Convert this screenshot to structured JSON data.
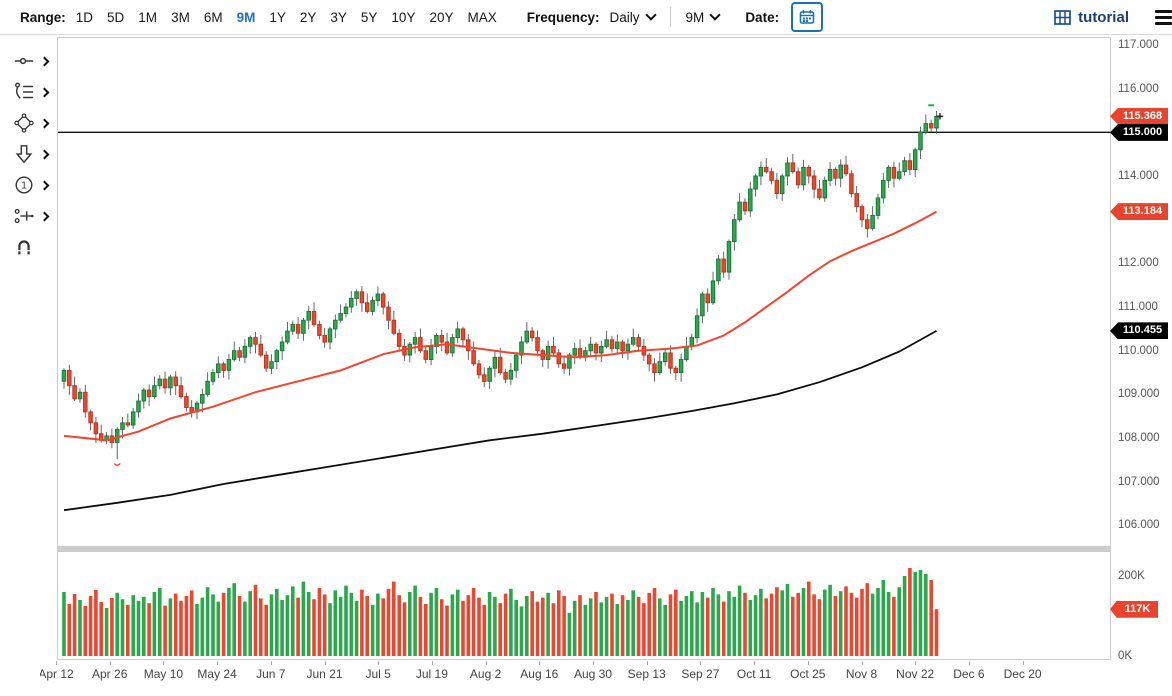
{
  "toolbar": {
    "range_label": "Range:",
    "range_options": [
      "1D",
      "5D",
      "1M",
      "3M",
      "6M",
      "9M",
      "1Y",
      "2Y",
      "3Y",
      "5Y",
      "10Y",
      "20Y",
      "MAX"
    ],
    "active_range": "9M",
    "frequency_label": "Frequency:",
    "frequency_value": "Daily",
    "interval_value": "9M",
    "date_label": "Date:"
  },
  "brand": {
    "name": "tutorial"
  },
  "side_toolbar": {
    "tools": [
      "line-tool",
      "drawing-list-tool",
      "shapes-tool",
      "arrow-tool",
      "number-annotation-tool",
      "compare-tool",
      "magnet-tool"
    ]
  },
  "colors": {
    "up": "#2aa84c",
    "up_border": "#177237",
    "down": "#ea4630",
    "down_border": "#b8301c",
    "ma_fast": "#f4442e",
    "ma_slow": "#0d0d0d",
    "badge_red": "#e8432c",
    "badge_black": "#000000",
    "accent_blue": "#1d6fd0",
    "brand_navy": "#1c3f77",
    "wick": "#555555"
  },
  "chart_data": {
    "type": "candlestick",
    "panes": [
      "price",
      "volume"
    ],
    "frequency": "Daily",
    "x_tick_labels": [
      "Apr 12",
      "Apr 26",
      "May 10",
      "May 24",
      "Jun 7",
      "Jun 21",
      "Jul 5",
      "Jul 19",
      "Aug 2",
      "Aug 16",
      "Aug 30",
      "Sep 13",
      "Sep 27",
      "Oct 11",
      "Oct 25",
      "Nov 8",
      "Nov 22",
      "Dec 6",
      "Dec 20"
    ],
    "days_per_tick": 10,
    "price_ticks": [
      117,
      116,
      114,
      112,
      111,
      110,
      109,
      108,
      107,
      106
    ],
    "volume_ticks_k": [
      200,
      0
    ],
    "price_axis_range": [
      105.5,
      117.16
    ],
    "volume_axis_range_k": [
      0,
      260
    ],
    "price_line": 115.0,
    "last_price": 115.368,
    "ma_fast_last": 113.184,
    "ma_slow_last": 110.455,
    "last_volume_k": 117,
    "price_badges": [
      {
        "text": "115.368",
        "value": 115.368,
        "bg": "#e8432c"
      },
      {
        "text": "115.000",
        "value": 115.0,
        "bg": "#000000"
      },
      {
        "text": "113.184",
        "value": 113.184,
        "bg": "#e8432c"
      },
      {
        "text": "110.455",
        "value": 110.455,
        "bg": "#000000"
      }
    ],
    "volume_badge": {
      "text": "117K",
      "value_k": 117,
      "bg": "#e8432c"
    },
    "markers": {
      "high_dash": 115.62,
      "last_trade_cross": 115.368,
      "low_check": 107.42
    },
    "closes": [
      109.55,
      109.2,
      108.9,
      109.05,
      108.6,
      108.35,
      108.1,
      107.95,
      108.05,
      107.9,
      108.2,
      108.35,
      108.3,
      108.6,
      108.85,
      109.1,
      108.95,
      109.2,
      109.35,
      109.15,
      109.4,
      109.2,
      108.95,
      108.7,
      108.6,
      108.8,
      109.0,
      109.3,
      109.5,
      109.7,
      109.55,
      109.8,
      110.0,
      109.85,
      110.1,
      110.3,
      110.15,
      109.9,
      109.6,
      109.75,
      110.0,
      110.2,
      110.45,
      110.6,
      110.4,
      110.7,
      110.9,
      110.6,
      110.35,
      110.2,
      110.5,
      110.7,
      110.85,
      111.0,
      111.2,
      111.35,
      111.1,
      110.9,
      111.15,
      111.3,
      111.0,
      110.7,
      110.4,
      110.1,
      109.9,
      110.15,
      110.3,
      110.0,
      109.8,
      110.1,
      110.35,
      110.2,
      109.95,
      110.3,
      110.5,
      110.25,
      110.0,
      109.7,
      109.45,
      109.3,
      109.6,
      109.85,
      109.5,
      109.35,
      109.55,
      109.9,
      110.2,
      110.45,
      110.3,
      110.0,
      109.8,
      110.1,
      109.95,
      109.7,
      109.6,
      109.9,
      110.05,
      109.85,
      110.0,
      110.15,
      109.95,
      110.1,
      110.25,
      110.05,
      110.2,
      110.0,
      110.15,
      110.3,
      110.1,
      109.9,
      109.7,
      109.5,
      109.75,
      109.95,
      109.6,
      109.5,
      109.8,
      110.1,
      110.3,
      110.8,
      111.3,
      111.1,
      111.6,
      112.1,
      111.8,
      112.5,
      113.0,
      113.4,
      113.2,
      113.7,
      114.0,
      114.2,
      114.1,
      113.9,
      113.6,
      114.0,
      114.3,
      114.1,
      113.8,
      114.2,
      114.0,
      113.7,
      113.5,
      113.9,
      114.15,
      113.95,
      114.25,
      114.05,
      113.6,
      113.3,
      113.0,
      112.8,
      113.1,
      113.5,
      113.9,
      114.2,
      113.95,
      114.1,
      114.35,
      114.15,
      114.6,
      115.0,
      115.2,
      115.1,
      115.368
    ],
    "first_open": 109.3,
    "volumes_k": [
      160,
      130,
      155,
      140,
      125,
      150,
      165,
      135,
      120,
      145,
      158,
      142,
      128,
      152,
      138,
      148,
      132,
      160,
      170,
      126,
      144,
      156,
      138,
      150,
      164,
      130,
      146,
      172,
      154,
      136,
      158,
      170,
      182,
      150,
      136,
      162,
      178,
      144,
      128,
      154,
      168,
      140,
      152,
      174,
      146,
      186,
      160,
      142,
      170,
      154,
      132,
      164,
      148,
      176,
      158,
      138,
      166,
      150,
      128,
      156,
      144,
      168,
      186,
      152,
      134,
      160,
      176,
      148,
      130,
      158,
      170,
      142,
      126,
      154,
      166,
      138,
      152,
      170,
      146,
      128,
      160,
      148,
      132,
      156,
      168,
      140,
      124,
      150,
      162,
      136,
      146,
      158,
      132,
      164,
      150,
      108,
      138,
      152,
      128,
      144,
      160,
      134,
      148,
      156,
      130,
      152,
      140,
      164,
      148,
      132,
      158,
      170,
      144,
      128,
      154,
      166,
      138,
      150,
      162,
      134,
      160,
      146,
      170,
      154,
      136,
      162,
      148,
      176,
      158,
      140,
      152,
      168,
      144,
      156,
      172,
      164,
      180,
      148,
      158,
      170,
      186,
      154,
      142,
      166,
      178,
      150,
      162,
      174,
      158,
      146,
      168,
      182,
      156,
      170,
      190,
      160,
      148,
      172,
      200,
      220,
      210,
      215,
      205,
      190,
      117
    ],
    "ma_fast_points": [
      [
        0,
        108.05
      ],
      [
        8,
        107.95
      ],
      [
        14,
        108.15
      ],
      [
        20,
        108.45
      ],
      [
        28,
        108.72
      ],
      [
        36,
        109.05
      ],
      [
        44,
        109.3
      ],
      [
        52,
        109.55
      ],
      [
        60,
        109.92
      ],
      [
        66,
        110.08
      ],
      [
        72,
        110.15
      ],
      [
        78,
        110.05
      ],
      [
        84,
        109.95
      ],
      [
        90,
        109.9
      ],
      [
        96,
        109.85
      ],
      [
        102,
        109.9
      ],
      [
        108,
        110.0
      ],
      [
        114,
        110.05
      ],
      [
        119,
        110.12
      ],
      [
        124,
        110.35
      ],
      [
        128,
        110.65
      ],
      [
        132,
        111.0
      ],
      [
        136,
        111.35
      ],
      [
        140,
        111.72
      ],
      [
        144,
        112.05
      ],
      [
        148,
        112.28
      ],
      [
        152,
        112.48
      ],
      [
        156,
        112.68
      ],
      [
        160,
        112.92
      ],
      [
        164,
        113.184
      ]
    ],
    "ma_slow_points": [
      [
        0,
        106.35
      ],
      [
        10,
        106.52
      ],
      [
        20,
        106.7
      ],
      [
        30,
        106.95
      ],
      [
        40,
        107.15
      ],
      [
        50,
        107.35
      ],
      [
        60,
        107.55
      ],
      [
        70,
        107.75
      ],
      [
        80,
        107.95
      ],
      [
        90,
        108.1
      ],
      [
        100,
        108.28
      ],
      [
        110,
        108.46
      ],
      [
        118,
        108.62
      ],
      [
        126,
        108.8
      ],
      [
        134,
        109.0
      ],
      [
        142,
        109.28
      ],
      [
        150,
        109.62
      ],
      [
        157,
        109.98
      ],
      [
        164,
        110.455
      ]
    ]
  }
}
